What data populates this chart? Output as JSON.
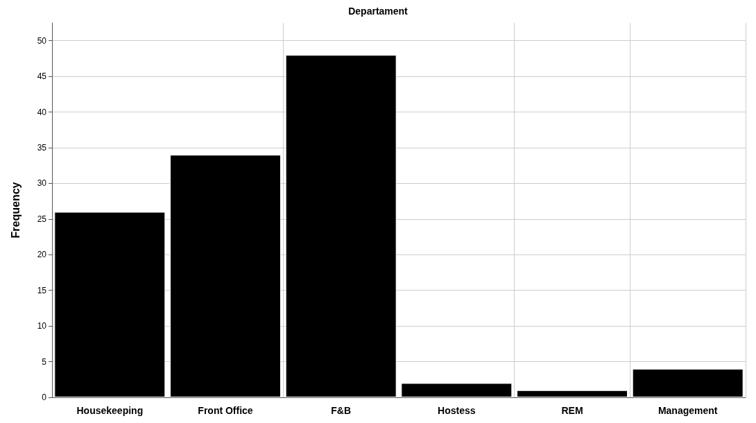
{
  "chart_data": {
    "type": "bar",
    "title": "Departament",
    "ylabel": "Frequency",
    "categories": [
      "Housekeeping",
      "Front Office",
      "F&B",
      "Hostess",
      "REM",
      "Management"
    ],
    "values": [
      26,
      34,
      48,
      2,
      1,
      4
    ],
    "color": "#000000",
    "ylim": [
      0,
      52.5
    ],
    "yticks": [
      0,
      5,
      10,
      15,
      20,
      25,
      30,
      35,
      40,
      45,
      50
    ],
    "grid": true
  }
}
